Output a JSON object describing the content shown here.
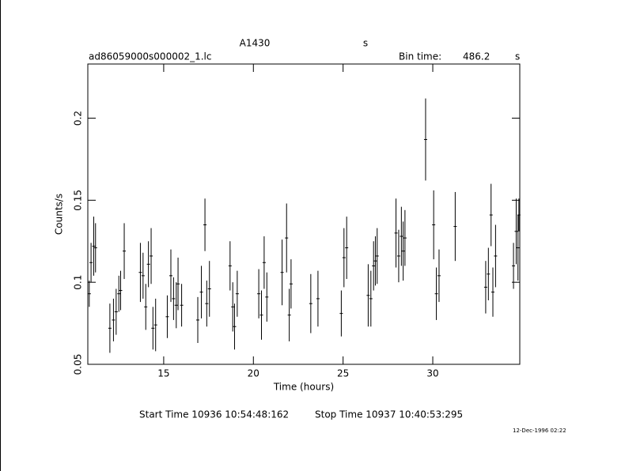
{
  "chart_data": {
    "type": "errorbar",
    "title": "A1430",
    "title_unit": "s",
    "file_name": "ad86059000s000002_1.lc",
    "bin_label": "Bin time:",
    "bin_value": "486.2",
    "bin_unit": "s",
    "xlabel": "Time (hours)",
    "ylabel": "Counts/s",
    "start_time": "Start Time 10936 10:54:48:162",
    "stop_time": "Stop Time 10937 10:40:53:295",
    "date_stamp": "12-Dec-1996 02:22",
    "color": "#000000",
    "xlim": [
      10.77,
      34.85
    ],
    "ylim": [
      0.05,
      0.233
    ],
    "xticks": [
      15,
      20,
      25,
      30
    ],
    "yticks": [
      0.05,
      0.1,
      0.15,
      0.2
    ],
    "x": [
      10.85,
      10.95,
      11.1,
      11.2,
      12.0,
      12.2,
      12.35,
      12.5,
      12.6,
      12.8,
      13.7,
      13.85,
      14.0,
      14.15,
      14.3,
      14.4,
      14.55,
      15.2,
      15.4,
      15.55,
      15.7,
      15.8,
      16.0,
      16.9,
      17.1,
      17.3,
      17.4,
      17.55,
      18.7,
      18.85,
      18.95,
      19.1,
      20.3,
      20.45,
      20.6,
      20.75,
      21.6,
      21.85,
      22.0,
      22.1,
      23.2,
      23.6,
      24.9,
      25.05,
      25.2,
      26.4,
      26.55,
      26.7,
      26.8,
      26.9,
      27.95,
      28.1,
      28.25,
      28.35,
      28.45,
      29.6,
      30.05,
      30.2,
      30.35,
      31.25,
      32.95,
      33.1,
      33.25,
      33.35,
      33.5,
      34.5,
      34.65,
      34.75,
      34.8
    ],
    "values": [
      0.093,
      0.112,
      0.122,
      0.121,
      0.072,
      0.077,
      0.082,
      0.093,
      0.095,
      0.119,
      0.106,
      0.104,
      0.085,
      0.111,
      0.116,
      0.072,
      0.074,
      0.079,
      0.104,
      0.09,
      0.086,
      0.099,
      0.086,
      0.077,
      0.094,
      0.135,
      0.087,
      0.096,
      0.11,
      0.085,
      0.073,
      0.093,
      0.093,
      0.08,
      0.112,
      0.091,
      0.106,
      0.127,
      0.08,
      0.099,
      0.087,
      0.09,
      0.081,
      0.115,
      0.121,
      0.092,
      0.09,
      0.11,
      0.113,
      0.116,
      0.13,
      0.116,
      0.128,
      0.119,
      0.127,
      0.187,
      0.135,
      0.093,
      0.104,
      0.134,
      0.097,
      0.105,
      0.141,
      0.094,
      0.116,
      0.11,
      0.131,
      0.121,
      0.141
    ],
    "errors": [
      0.008,
      0.012,
      0.018,
      0.015,
      0.015,
      0.013,
      0.014,
      0.011,
      0.012,
      0.017,
      0.018,
      0.014,
      0.014,
      0.014,
      0.017,
      0.013,
      0.016,
      0.013,
      0.016,
      0.013,
      0.014,
      0.016,
      0.013,
      0.014,
      0.016,
      0.016,
      0.014,
      0.017,
      0.015,
      0.015,
      0.014,
      0.014,
      0.015,
      0.015,
      0.016,
      0.015,
      0.02,
      0.021,
      0.016,
      0.015,
      0.018,
      0.017,
      0.014,
      0.018,
      0.019,
      0.019,
      0.017,
      0.015,
      0.015,
      0.017,
      0.021,
      0.016,
      0.018,
      0.018,
      0.017,
      0.025,
      0.021,
      0.016,
      0.016,
      0.021,
      0.016,
      0.016,
      0.019,
      0.015,
      0.019,
      0.014,
      0.02,
      0.02,
      0.01
    ]
  }
}
